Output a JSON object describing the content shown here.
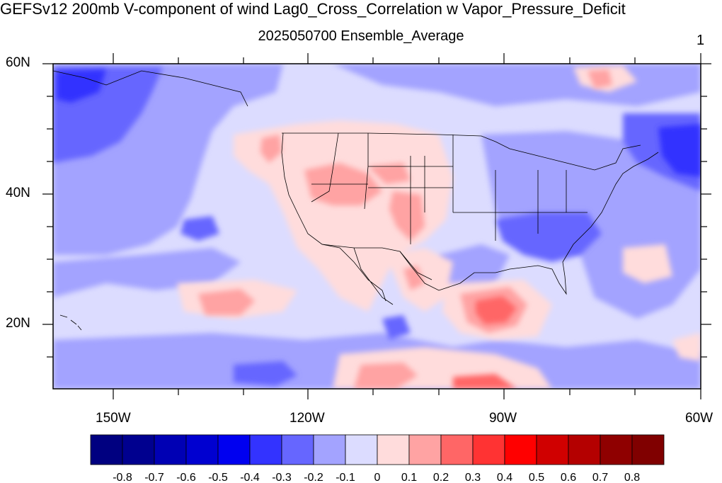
{
  "title": "GEFSv12 200mb V-component of wind Lag0_Cross_Correlation w Vapor_Pressure_Deficit",
  "subtitle": "2025050700 Ensemble_Average",
  "panel_label": "1",
  "y_axis_labels": [
    "60N",
    "40N",
    "20N"
  ],
  "x_axis_labels": [
    "150W",
    "120W",
    "90W",
    "60W"
  ],
  "colorbar": {
    "labels": [
      "-0.8",
      "-0.7",
      "-0.6",
      "-0.5",
      "-0.4",
      "-0.3",
      "-0.2",
      "-0.1",
      "0",
      "0.1",
      "0.2",
      "0.3",
      "0.4",
      "0.5",
      "0.6",
      "0.7",
      "0.8"
    ],
    "colors": [
      "#000080",
      "#00008f",
      "#0000b4",
      "#0000d0",
      "#0000f0",
      "#3333ff",
      "#6666ff",
      "#a3a3ff",
      "#dcdcff",
      "#ffdcdc",
      "#ffa3a3",
      "#ff6666",
      "#ff3333",
      "#ff0000",
      "#d00000",
      "#b40000",
      "#8f0000",
      "#800000"
    ]
  },
  "map": {
    "lon_range": [
      -160,
      -60
    ],
    "lat_range": [
      10,
      60
    ],
    "background_level": "-0.1 to 0",
    "projection": "cylindrical-equidistant"
  }
}
